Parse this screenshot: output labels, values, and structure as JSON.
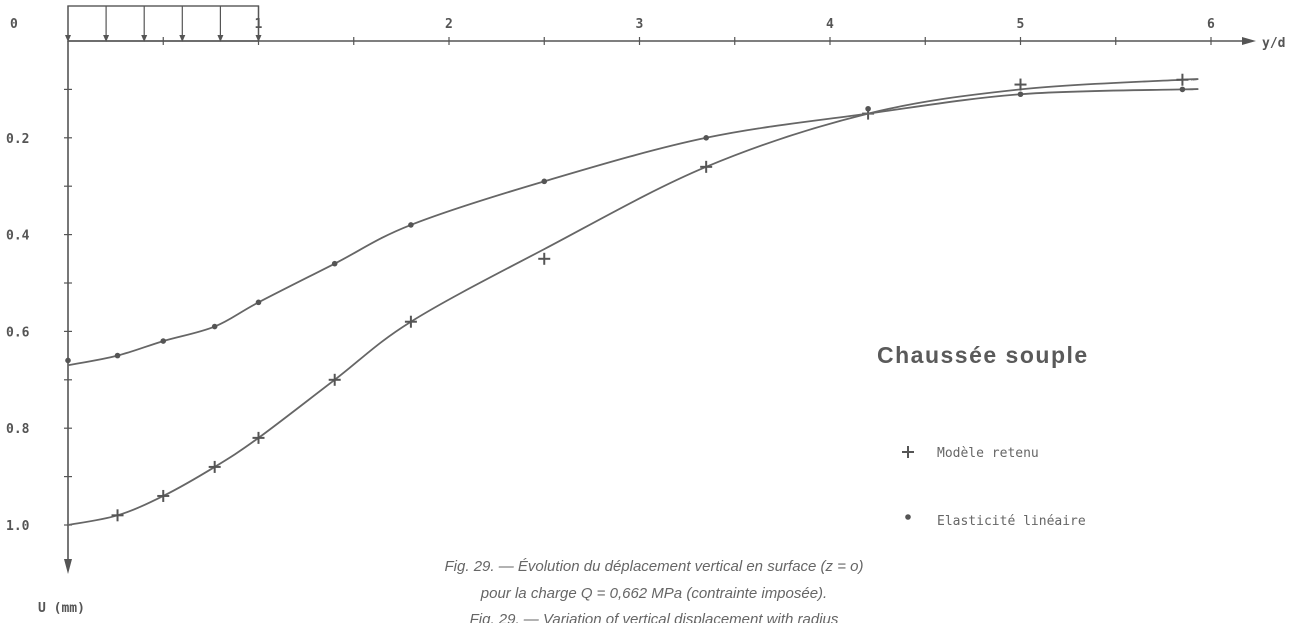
{
  "chart_data": {
    "type": "line",
    "xlabel": "y/d",
    "ylabel": "U (mm)",
    "x_range": [
      0,
      6
    ],
    "y_range": [
      0,
      1.0
    ],
    "y_axis_inverted": true,
    "x_ticks": [
      {
        "value": 0,
        "label": "0"
      },
      {
        "value": 1,
        "label": "1"
      },
      {
        "value": 2,
        "label": "2"
      },
      {
        "value": 3,
        "label": "3"
      },
      {
        "value": 4,
        "label": "4"
      },
      {
        "value": 5,
        "label": "5"
      },
      {
        "value": 6,
        "label": "6"
      }
    ],
    "y_ticks": [
      {
        "value": 0.2,
        "label": "0.2"
      },
      {
        "value": 0.4,
        "label": "0.4"
      },
      {
        "value": 0.6,
        "label": "0.6"
      },
      {
        "value": 0.8,
        "label": "0.8"
      },
      {
        "value": 1.0,
        "label": "1.0"
      }
    ],
    "load_diagram": {
      "x_start": 0,
      "x_end": 1,
      "arrow_count": 6
    },
    "annotation_title": "Chaussée souple",
    "legend_position": "right",
    "series": [
      {
        "name": "Modèle retenu",
        "marker": "plus",
        "points": [
          [
            0.26,
            0.98
          ],
          [
            0.5,
            0.94
          ],
          [
            0.77,
            0.88
          ],
          [
            1.0,
            0.82
          ],
          [
            1.4,
            0.7
          ],
          [
            1.8,
            0.58
          ],
          [
            2.5,
            0.45
          ],
          [
            3.35,
            0.26
          ],
          [
            4.2,
            0.15
          ],
          [
            5.0,
            0.09
          ],
          [
            5.85,
            0.08
          ]
        ],
        "curve": [
          [
            0,
            1.0
          ],
          [
            0.26,
            0.98
          ],
          [
            0.5,
            0.94
          ],
          [
            0.77,
            0.88
          ],
          [
            1.0,
            0.82
          ],
          [
            1.4,
            0.7
          ],
          [
            1.8,
            0.58
          ],
          [
            2.5,
            0.43
          ],
          [
            3.35,
            0.26
          ],
          [
            4.2,
            0.15
          ],
          [
            5.0,
            0.1
          ],
          [
            5.85,
            0.08
          ],
          [
            5.9,
            0.08
          ]
        ]
      },
      {
        "name": "Elasticité linéaire",
        "marker": "dot",
        "points": [
          [
            0,
            0.66
          ],
          [
            0.26,
            0.65
          ],
          [
            0.5,
            0.62
          ],
          [
            0.77,
            0.59
          ],
          [
            1.0,
            0.54
          ],
          [
            1.4,
            0.46
          ],
          [
            1.8,
            0.38
          ],
          [
            2.5,
            0.29
          ],
          [
            3.35,
            0.2
          ],
          [
            4.2,
            0.14
          ],
          [
            5.0,
            0.11
          ],
          [
            5.85,
            0.1
          ]
        ],
        "curve": [
          [
            0,
            0.67
          ],
          [
            0.26,
            0.65
          ],
          [
            0.5,
            0.62
          ],
          [
            0.77,
            0.59
          ],
          [
            1.0,
            0.54
          ],
          [
            1.4,
            0.46
          ],
          [
            1.8,
            0.38
          ],
          [
            2.5,
            0.29
          ],
          [
            3.35,
            0.2
          ],
          [
            4.2,
            0.15
          ],
          [
            5.0,
            0.11
          ],
          [
            5.85,
            0.1
          ],
          [
            5.9,
            0.1
          ]
        ]
      }
    ]
  },
  "caption": {
    "line1": "Fig. 29. — Évolution du déplacement vertical en surface (z = o)",
    "line2": "pour la charge Q = 0,662 MPa (contrainte imposée).",
    "line3": "Fig. 29. — Variation of vertical displacement with radius"
  },
  "colors": {
    "curve": "#666666",
    "axis": "#555555",
    "marker": "#555555"
  }
}
